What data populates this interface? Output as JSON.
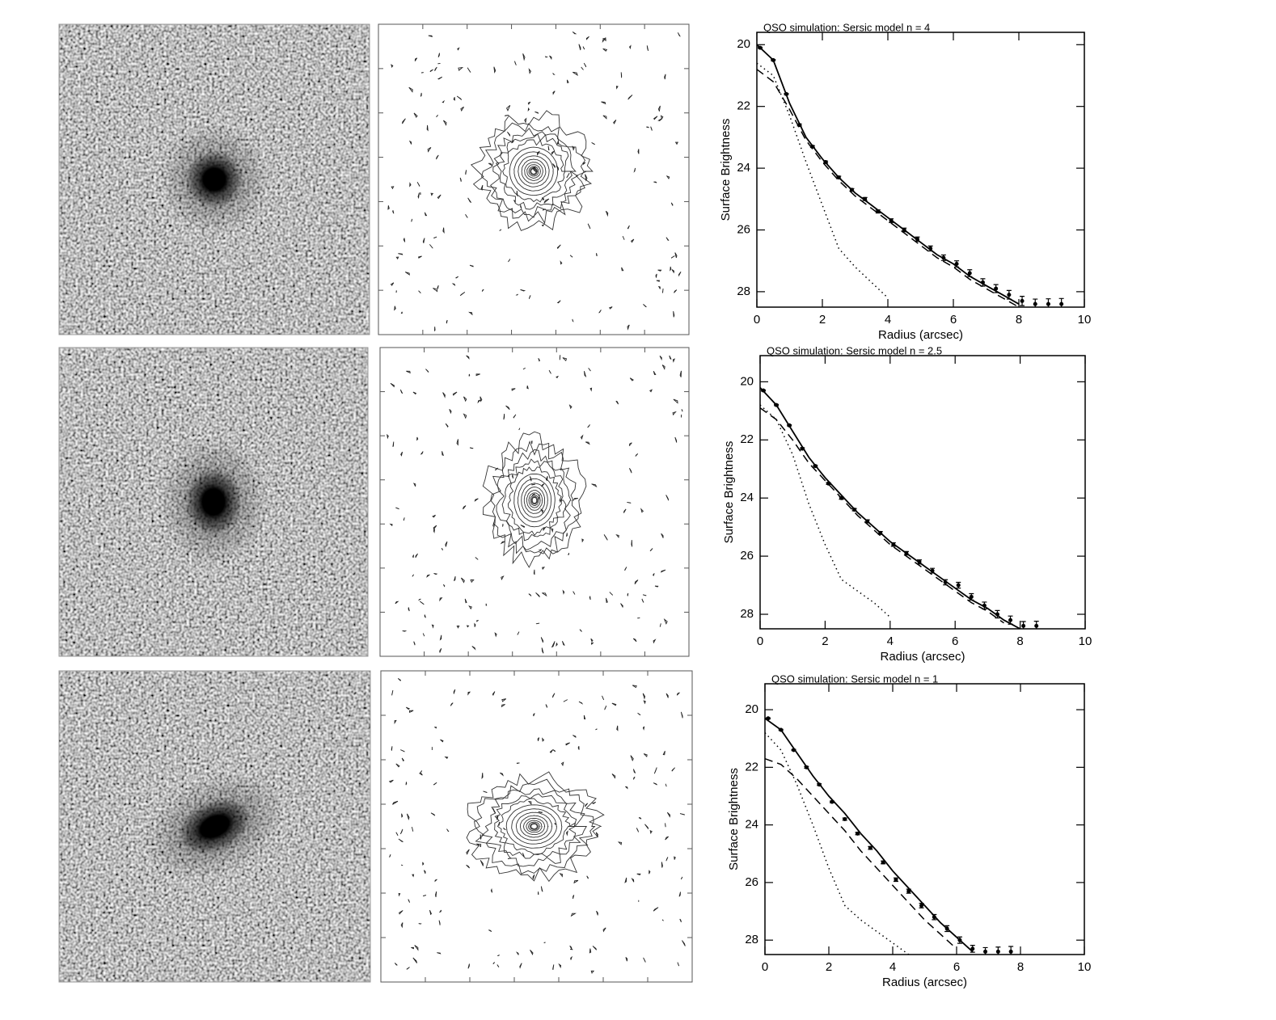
{
  "chart_data": [
    {
      "type": "line",
      "title": "QSO simulation: Sersic model n = 4",
      "xlabel": "Radius (arcsec)",
      "ylabel": "Surface Brightness",
      "xlim": [
        0,
        10
      ],
      "ylim": [
        28.5,
        19.6
      ],
      "xticks": [
        0,
        2,
        4,
        6,
        8,
        10
      ],
      "yticks": [
        20,
        22,
        24,
        26,
        28
      ],
      "x": [
        0,
        0.5,
        1,
        1.5,
        2,
        2.5,
        3,
        3.5,
        4,
        4.5,
        5,
        5.5,
        6,
        6.5,
        7,
        7.5,
        8,
        8.5
      ],
      "series": [
        {
          "color": "#000",
          "dash": "solid",
          "values": [
            20.0,
            20.5,
            21.9,
            23.0,
            23.7,
            24.3,
            24.8,
            25.2,
            25.6,
            26.0,
            26.4,
            26.8,
            27.1,
            27.5,
            27.8,
            28.1,
            28.4,
            null
          ]
        },
        {
          "color": "#000",
          "dash": "dashed",
          "values": [
            20.8,
            21.2,
            22.1,
            23.1,
            23.8,
            24.4,
            24.9,
            25.3,
            25.7,
            26.1,
            26.5,
            26.9,
            27.2,
            27.6,
            27.9,
            28.2,
            28.5,
            null
          ]
        },
        {
          "color": "#000",
          "dash": "dotted",
          "values": [
            20.6,
            21.0,
            22.3,
            23.8,
            25.2,
            26.6,
            27.2,
            27.7,
            28.2,
            null,
            null,
            null,
            null,
            null,
            null,
            null,
            null,
            null
          ]
        },
        {
          "color": "#000",
          "marker": "dot",
          "x": [
            0.1,
            0.5,
            0.9,
            1.3,
            1.7,
            2.1,
            2.5,
            2.9,
            3.3,
            3.7,
            4.1,
            4.5,
            4.9,
            5.3,
            5.7,
            6.1,
            6.5,
            6.9,
            7.3,
            7.7,
            8.1,
            8.5,
            8.9,
            9.3
          ],
          "values": [
            20.1,
            20.5,
            21.6,
            22.6,
            23.3,
            23.8,
            24.3,
            24.7,
            25.0,
            25.4,
            25.7,
            26.0,
            26.3,
            26.6,
            26.9,
            27.1,
            27.4,
            27.7,
            27.9,
            28.1,
            28.3,
            28.4,
            28.4,
            28.4
          ],
          "errors": [
            0.02,
            0.02,
            0.02,
            0.03,
            0.03,
            0.03,
            0.04,
            0.04,
            0.05,
            0.05,
            0.06,
            0.06,
            0.07,
            0.08,
            0.09,
            0.1,
            0.11,
            0.12,
            0.13,
            0.14,
            0.15,
            0.16,
            0.17,
            0.18
          ]
        }
      ]
    },
    {
      "type": "line",
      "title": "QSO simulation: Sersic model n = 2.5",
      "xlabel": "Radius (arcsec)",
      "ylabel": "Surface Brightness",
      "xlim": [
        0,
        10
      ],
      "ylim": [
        28.5,
        19.1
      ],
      "xticks": [
        0,
        2,
        4,
        6,
        8,
        10
      ],
      "yticks": [
        20,
        22,
        24,
        26,
        28
      ],
      "x": [
        0,
        0.5,
        1,
        1.5,
        2,
        2.5,
        3,
        3.5,
        4,
        4.5,
        5,
        5.5,
        6,
        6.5,
        7,
        7.5,
        8,
        8.5
      ],
      "series": [
        {
          "color": "#000",
          "dash": "solid",
          "values": [
            20.2,
            20.8,
            21.7,
            22.6,
            23.3,
            23.9,
            24.5,
            25.0,
            25.5,
            25.9,
            26.3,
            26.7,
            27.1,
            27.5,
            27.8,
            28.2,
            28.5,
            null
          ]
        },
        {
          "color": "#000",
          "dash": "dashed",
          "values": [
            20.9,
            21.3,
            22.0,
            22.8,
            23.4,
            24.0,
            24.6,
            25.1,
            25.6,
            26.0,
            26.4,
            26.8,
            27.2,
            27.6,
            27.9,
            28.3,
            null,
            null
          ]
        },
        {
          "color": "#000",
          "dash": "dotted",
          "values": [
            20.8,
            21.3,
            22.5,
            24.2,
            25.6,
            26.8,
            27.2,
            27.6,
            28.1,
            null,
            null,
            null,
            null,
            null,
            null,
            null,
            null,
            null
          ]
        },
        {
          "color": "#000",
          "marker": "dot",
          "x": [
            0.1,
            0.5,
            0.9,
            1.3,
            1.7,
            2.1,
            2.5,
            2.9,
            3.3,
            3.7,
            4.1,
            4.5,
            4.9,
            5.3,
            5.7,
            6.1,
            6.5,
            6.9,
            7.3,
            7.7,
            8.1,
            8.5
          ],
          "values": [
            20.3,
            20.8,
            21.5,
            22.3,
            22.9,
            23.5,
            24.0,
            24.4,
            24.8,
            25.2,
            25.6,
            25.9,
            26.2,
            26.5,
            26.9,
            27.0,
            27.4,
            27.7,
            28.0,
            28.2,
            28.4,
            28.4
          ],
          "errors": [
            0.02,
            0.02,
            0.02,
            0.03,
            0.03,
            0.03,
            0.04,
            0.04,
            0.05,
            0.05,
            0.06,
            0.06,
            0.07,
            0.08,
            0.09,
            0.1,
            0.11,
            0.12,
            0.13,
            0.14,
            0.15,
            0.16
          ]
        }
      ]
    },
    {
      "type": "line",
      "title": "QSO simulation: Sersic model n = 1",
      "xlabel": "Radius (arcsec)",
      "ylabel": "Surface Brightness",
      "xlim": [
        0,
        10
      ],
      "ylim": [
        28.5,
        19.1
      ],
      "xticks": [
        0,
        2,
        4,
        6,
        8,
        10
      ],
      "yticks": [
        20,
        22,
        24,
        26,
        28
      ],
      "x": [
        0,
        0.5,
        1,
        1.5,
        2,
        2.5,
        3,
        3.5,
        4,
        4.5,
        5,
        5.5,
        6,
        6.5,
        7
      ],
      "series": [
        {
          "color": "#000",
          "dash": "solid",
          "values": [
            20.3,
            20.7,
            21.5,
            22.3,
            23.0,
            23.6,
            24.3,
            24.9,
            25.6,
            26.2,
            26.8,
            27.4,
            27.9,
            28.4,
            null
          ]
        },
        {
          "color": "#000",
          "dash": "dashed",
          "values": [
            21.7,
            21.9,
            22.4,
            23.0,
            23.6,
            24.2,
            24.9,
            25.5,
            26.1,
            26.7,
            27.3,
            27.8,
            28.3,
            null,
            null
          ]
        },
        {
          "color": "#000",
          "dash": "dotted",
          "values": [
            20.8,
            21.4,
            22.6,
            24.0,
            25.5,
            26.8,
            27.3,
            27.7,
            28.1,
            28.5,
            null,
            null,
            null,
            null,
            null
          ]
        },
        {
          "color": "#000",
          "marker": "dot",
          "x": [
            0.1,
            0.5,
            0.9,
            1.3,
            1.7,
            2.1,
            2.5,
            2.9,
            3.3,
            3.7,
            4.1,
            4.5,
            4.9,
            5.3,
            5.7,
            6.1,
            6.5,
            6.9,
            7.3,
            7.7
          ],
          "values": [
            20.3,
            20.7,
            21.4,
            22.0,
            22.6,
            23.2,
            23.8,
            24.3,
            24.8,
            25.3,
            25.9,
            26.3,
            26.8,
            27.2,
            27.6,
            28.0,
            28.3,
            28.4,
            28.4,
            28.4
          ],
          "errors": [
            0.02,
            0.02,
            0.02,
            0.03,
            0.03,
            0.03,
            0.04,
            0.04,
            0.05,
            0.05,
            0.06,
            0.07,
            0.08,
            0.09,
            0.1,
            0.11,
            0.12,
            0.14,
            0.16,
            0.18
          ]
        }
      ]
    }
  ]
}
